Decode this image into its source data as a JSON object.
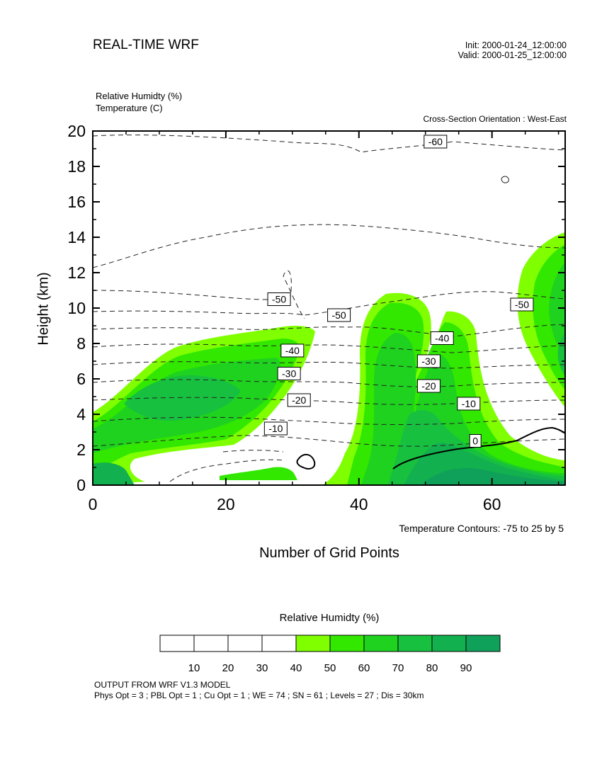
{
  "header": {
    "title": "REAL-TIME WRF",
    "init": "Init: 2000-01-24_12:00:00",
    "valid": "Valid: 2000-01-25_12:00:00",
    "variable_1": "Relative Humidty   (%)",
    "variable_2": "Temperature   (C)",
    "orientation": "Cross-Section Orientation : West-East"
  },
  "chart_data": {
    "type": "heatmap",
    "title": "REAL-TIME WRF",
    "xlabel": "Number of Grid Points",
    "ylabel": "Height (km)",
    "xlim": [
      0,
      71
    ],
    "ylim": [
      0,
      20
    ],
    "x_ticks": [
      "0",
      "20",
      "40",
      "60"
    ],
    "y_ticks": [
      "0",
      "2",
      "4",
      "6",
      "8",
      "10",
      "12",
      "14",
      "16",
      "18",
      "20"
    ],
    "fill_variable": "Relative Humidty (%)",
    "contour_variable": "Temperature (C)",
    "contour_note": "Temperature Contours: -75 to 25 by 5",
    "colors": {
      "rh_40_50": "#7fff00",
      "rh_50_60": "#32e800",
      "rh_60_70": "#1fd21f",
      "rh_70_80": "#18c040",
      "rh_80_90": "#12b04e",
      "rh_90_plus": "#0fa05a"
    },
    "contour_labels": [
      {
        "text": "-60",
        "x": 51.5,
        "y": 19.4
      },
      {
        "text": "-50",
        "x": 28.0,
        "y": 10.5
      },
      {
        "text": "-50",
        "x": 37.0,
        "y": 9.6
      },
      {
        "text": "-50",
        "x": 64.5,
        "y": 10.2
      },
      {
        "text": "-40",
        "x": 30.0,
        "y": 7.6
      },
      {
        "text": "-40",
        "x": 52.5,
        "y": 8.3
      },
      {
        "text": "-30",
        "x": 29.5,
        "y": 6.3
      },
      {
        "text": "-30",
        "x": 50.5,
        "y": 7.0
      },
      {
        "text": "-20",
        "x": 31.0,
        "y": 4.8
      },
      {
        "text": "-20",
        "x": 50.5,
        "y": 5.6
      },
      {
        "text": "-10",
        "x": 27.5,
        "y": 3.2
      },
      {
        "text": "-10",
        "x": 56.5,
        "y": 4.6
      },
      {
        "text": "0",
        "x": 57.5,
        "y": 2.5
      }
    ]
  },
  "legend": {
    "title": "Relative Humidty  (%)",
    "tick_labels": [
      "10",
      "20",
      "30",
      "40",
      "50",
      "60",
      "70",
      "80",
      "90"
    ],
    "box_colors": [
      "#ffffff",
      "#ffffff",
      "#ffffff",
      "#ffffff",
      "#7fff00",
      "#32e800",
      "#1fd21f",
      "#18c040",
      "#12b04e",
      "#0fa05a"
    ]
  },
  "footer": {
    "line1": "OUTPUT FROM WRF V1.3 MODEL",
    "line2": "Phys Opt = 3 ; PBL Opt = 1 ; Cu Opt = 1 ; WE = 74 ; SN = 61 ; Levels = 27 ; Dis = 30km"
  }
}
